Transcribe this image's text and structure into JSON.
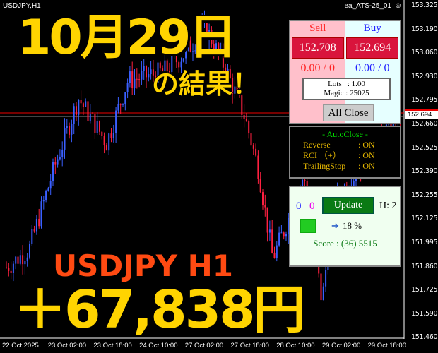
{
  "header": {
    "symbol": "USDJPY,H1",
    "ea_name": "ea_ATS-25_01",
    "ea_icon": "smiley-icon"
  },
  "price_axis": [
    "153.325",
    "153.190",
    "153.060",
    "152.930",
    "152.795",
    "152.660",
    "152.525",
    "152.390",
    "152.255",
    "152.125",
    "151.995",
    "151.860",
    "151.725",
    "151.590",
    "151.460"
  ],
  "current_price": "152.694",
  "time_axis": [
    "22 Oct 2025",
    "23 Oct 02:00",
    "23 Oct 18:00",
    "24 Oct 10:00",
    "27 Oct 02:00",
    "27 Oct 18:00",
    "28 Oct 10:00",
    "29 Oct 02:00",
    "29 Oct 18:00"
  ],
  "overlay": {
    "date": "10月29日",
    "result": "の結果！",
    "pair": "USDJPY H1",
    "profit": "＋67,838円"
  },
  "trade_panel": {
    "sell_label": "Sell",
    "buy_label": "Buy",
    "sell_price": "152.708",
    "buy_price": "152.694",
    "sell_pl": "0.00 / 0",
    "buy_pl": "0.00 / 0",
    "lots": "Lots   : 1.00",
    "magic": "Magic : 25025",
    "all_close": "All Close"
  },
  "autoclose": {
    "title": "- AutoClose -",
    "items": [
      {
        "label": "Reverse",
        "value": ": ON"
      },
      {
        "label": "RCI （+）",
        "value": ": ON"
      },
      {
        "label": "TrailingStop",
        "value": ": ON"
      }
    ]
  },
  "stats_panel": {
    "count_blue": "0",
    "count_magenta": "0",
    "update": "Update",
    "h": "H: 2",
    "percent": "18 %",
    "score": "Score : (36) 5515"
  },
  "colors": {
    "bull": "#3a5fff",
    "bear": "#ff2040",
    "sell": "#ff2020",
    "buy": "#2020ff",
    "accent_yellow": "#ffd400"
  }
}
